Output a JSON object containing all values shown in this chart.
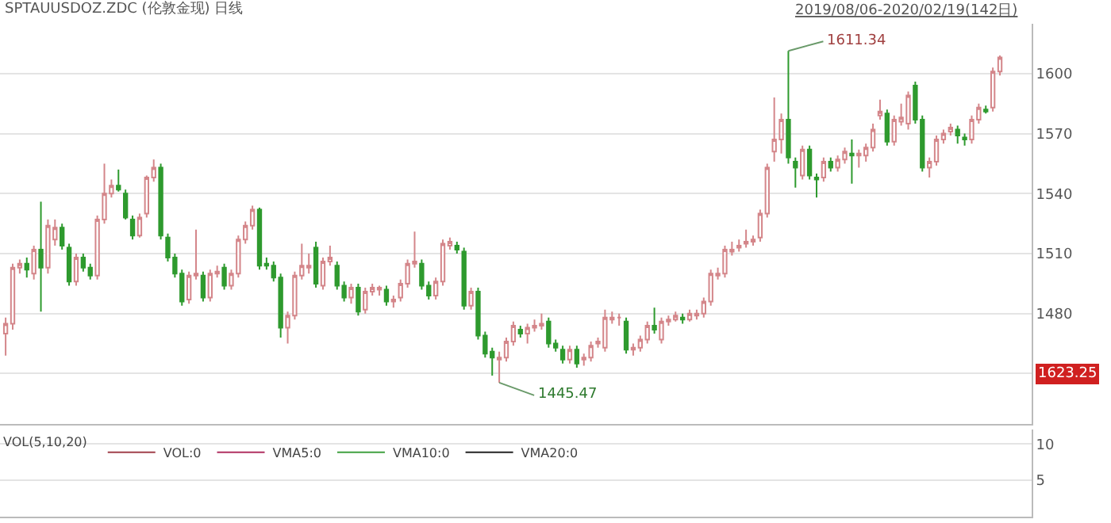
{
  "chart_data": [
    {
      "type": "candlestick",
      "title": "SPTAUUSDOZ.ZDC (伦敦金现) 日线",
      "categories": [
        null,
        null,
        null,
        null,
        null,
        null,
        null,
        null,
        null,
        null,
        null,
        null,
        null,
        null,
        null,
        null,
        null,
        null,
        null,
        null,
        null,
        null,
        null,
        null,
        null,
        null,
        null,
        null,
        null,
        null,
        null,
        null,
        null,
        null,
        null,
        null,
        null,
        null,
        null,
        null,
        null,
        null,
        null,
        null,
        null,
        null,
        null,
        null,
        null,
        null,
        null,
        null,
        null,
        null,
        null,
        null,
        null,
        null,
        null,
        null,
        null,
        null,
        null,
        null,
        null,
        null,
        null,
        null,
        null,
        null,
        null,
        null,
        null,
        null,
        null,
        null,
        null,
        null,
        null,
        null,
        null,
        null,
        null,
        null,
        null,
        null,
        null,
        null,
        null,
        null,
        null,
        null,
        null,
        null,
        null,
        null,
        null,
        null,
        null,
        null,
        null,
        null,
        null,
        null,
        null,
        null,
        null,
        null,
        null,
        null,
        null,
        null,
        null,
        null,
        null,
        null,
        null,
        null,
        null,
        null,
        null,
        null,
        null,
        null,
        null,
        null,
        null,
        null,
        null,
        null,
        null,
        null,
        null,
        null,
        null,
        null,
        null,
        null,
        null,
        null,
        null,
        null
      ],
      "ohlc": [
        [
          1470,
          1478,
          1459,
          1475
        ],
        [
          1475,
          1505,
          1472,
          1503
        ],
        [
          1503,
          1507,
          1500,
          1505
        ],
        [
          1505,
          1508,
          1498,
          1502
        ],
        [
          1500,
          1514,
          1497,
          1512
        ],
        [
          1512,
          1536,
          1481,
          1503
        ],
        [
          1503,
          1527,
          1500,
          1524
        ],
        [
          1517,
          1527,
          1514,
          1523
        ],
        [
          1523,
          1525,
          1512,
          1514
        ],
        [
          1513,
          1515,
          1494,
          1496
        ],
        [
          1496,
          1510,
          1494,
          1508
        ],
        [
          1508,
          1510,
          1501,
          1503
        ],
        [
          1503,
          1505,
          1497,
          1499
        ],
        [
          1499,
          1529,
          1497,
          1527
        ],
        [
          1527,
          1555,
          1525,
          1540
        ],
        [
          1540,
          1547,
          1538,
          1544
        ],
        [
          1544,
          1552,
          1541,
          1542
        ],
        [
          1540,
          1542,
          1527,
          1528
        ],
        [
          1527,
          1529,
          1517,
          1519
        ],
        [
          1519,
          1530,
          1518,
          1528
        ],
        [
          1530,
          1549,
          1528,
          1548
        ],
        [
          1548,
          1557,
          1546,
          1553
        ],
        [
          1553,
          1555,
          1517,
          1519
        ],
        [
          1518,
          1520,
          1506,
          1508
        ],
        [
          1508,
          1510,
          1498,
          1500
        ],
        [
          1500,
          1502,
          1484,
          1486
        ],
        [
          1487,
          1501,
          1485,
          1499
        ],
        [
          1499,
          1522,
          1497,
          1500
        ],
        [
          1499,
          1501,
          1486,
          1488
        ],
        [
          1488,
          1502,
          1486,
          1500
        ],
        [
          1500,
          1504,
          1498,
          1501
        ],
        [
          1503,
          1505,
          1492,
          1494
        ],
        [
          1494,
          1502,
          1492,
          1500
        ],
        [
          1500,
          1519,
          1498,
          1517
        ],
        [
          1517,
          1526,
          1515,
          1524
        ],
        [
          1524,
          1534,
          1522,
          1532
        ],
        [
          1532,
          1533,
          1502,
          1504
        ],
        [
          1505,
          1508,
          1502,
          1504
        ],
        [
          1504,
          1506,
          1496,
          1498
        ],
        [
          1498,
          1500,
          1468,
          1473
        ],
        [
          1473,
          1481,
          1465,
          1479
        ],
        [
          1479,
          1501,
          1477,
          1499
        ],
        [
          1499,
          1515,
          1497,
          1504
        ],
        [
          1503,
          1510,
          1500,
          1504
        ],
        [
          1513,
          1516,
          1493,
          1495
        ],
        [
          1494,
          1508,
          1492,
          1506
        ],
        [
          1506,
          1514,
          1504,
          1508
        ],
        [
          1504,
          1506,
          1492,
          1494
        ],
        [
          1494,
          1496,
          1486,
          1488
        ],
        [
          1488,
          1495,
          1485,
          1493
        ],
        [
          1493,
          1495,
          1479,
          1481
        ],
        [
          1482,
          1493,
          1480,
          1491
        ],
        [
          1491,
          1495,
          1489,
          1493
        ],
        [
          1492,
          1494,
          1489,
          1493
        ],
        [
          1492,
          1494,
          1484,
          1486
        ],
        [
          1486,
          1489,
          1483,
          1487
        ],
        [
          1488,
          1497,
          1486,
          1495
        ],
        [
          1495,
          1507,
          1493,
          1505
        ],
        [
          1505,
          1521,
          1503,
          1506
        ],
        [
          1505,
          1507,
          1492,
          1494
        ],
        [
          1494,
          1496,
          1487,
          1489
        ],
        [
          1489,
          1498,
          1487,
          1496
        ],
        [
          1496,
          1517,
          1494,
          1515
        ],
        [
          1514,
          1518,
          1512,
          1516
        ],
        [
          1514,
          1516,
          1510,
          1512
        ],
        [
          1511,
          1513,
          1482,
          1484
        ],
        [
          1484,
          1493,
          1482,
          1491
        ],
        [
          1491,
          1493,
          1467,
          1469
        ],
        [
          1469,
          1471,
          1458,
          1460
        ],
        [
          1461,
          1463,
          1449,
          1458
        ],
        [
          1457,
          1461,
          1445.47,
          1458
        ],
        [
          1458,
          1468,
          1456,
          1466
        ],
        [
          1466,
          1476,
          1464,
          1474
        ],
        [
          1472,
          1474,
          1468,
          1470
        ],
        [
          1470,
          1475,
          1465,
          1473
        ],
        [
          1473,
          1477,
          1471,
          1474
        ],
        [
          1474,
          1480,
          1472,
          1475
        ],
        [
          1476,
          1478,
          1463,
          1465
        ],
        [
          1465,
          1467,
          1461,
          1463
        ],
        [
          1462,
          1464,
          1455,
          1457
        ],
        [
          1457,
          1464,
          1455,
          1462
        ],
        [
          1462,
          1464,
          1453,
          1455
        ],
        [
          1457,
          1460,
          1454,
          1458
        ],
        [
          1458,
          1466,
          1456,
          1464
        ],
        [
          1465,
          1468,
          1463,
          1466
        ],
        [
          1463,
          1482,
          1461,
          1478
        ],
        [
          1477,
          1481,
          1475,
          1478
        ],
        [
          1478,
          1480,
          1474,
          1478
        ],
        [
          1476,
          1478,
          1460,
          1462
        ],
        [
          1462,
          1465,
          1459,
          1463
        ],
        [
          1463,
          1469,
          1461,
          1467
        ],
        [
          1467,
          1476,
          1465,
          1474
        ],
        [
          1474,
          1483,
          1470,
          1472
        ],
        [
          1467,
          1478,
          1465,
          1476
        ],
        [
          1476,
          1479,
          1474,
          1477
        ],
        [
          1477,
          1481,
          1476,
          1479
        ],
        [
          1478,
          1480,
          1475,
          1477
        ],
        [
          1477,
          1482,
          1476,
          1480
        ],
        [
          1479,
          1482,
          1477,
          1480
        ],
        [
          1480,
          1488,
          1478,
          1486
        ],
        [
          1486,
          1502,
          1484,
          1500
        ],
        [
          1499,
          1503,
          1497,
          1500
        ],
        [
          1500,
          1514,
          1498,
          1512
        ],
        [
          1511,
          1516,
          1509,
          1512
        ],
        [
          1513,
          1517,
          1511,
          1514
        ],
        [
          1515,
          1522,
          1513,
          1516
        ],
        [
          1516,
          1519,
          1514,
          1517
        ],
        [
          1518,
          1532,
          1516,
          1530
        ],
        [
          1530,
          1555,
          1528,
          1553
        ],
        [
          1561,
          1588,
          1556,
          1567
        ],
        [
          1567,
          1580,
          1560,
          1577
        ],
        [
          1577,
          1611.34,
          1555,
          1558
        ],
        [
          1556,
          1558,
          1543,
          1553
        ],
        [
          1549,
          1564,
          1547,
          1562
        ],
        [
          1562,
          1564,
          1547,
          1549
        ],
        [
          1548,
          1550,
          1538,
          1547
        ],
        [
          1548,
          1558,
          1546,
          1556
        ],
        [
          1556,
          1558,
          1551,
          1553
        ],
        [
          1553,
          1559,
          1551,
          1557
        ],
        [
          1557,
          1563,
          1555,
          1561
        ],
        [
          1560,
          1567,
          1545,
          1559
        ],
        [
          1559,
          1562,
          1553,
          1560
        ],
        [
          1559,
          1565,
          1556,
          1563
        ],
        [
          1563,
          1575,
          1561,
          1572
        ],
        [
          1579,
          1587,
          1577,
          1581
        ],
        [
          1580,
          1582,
          1564,
          1566
        ],
        [
          1566,
          1579,
          1564,
          1577
        ],
        [
          1576,
          1585,
          1574,
          1578
        ],
        [
          1575,
          1591,
          1572,
          1589
        ],
        [
          1594,
          1596,
          1575,
          1577
        ],
        [
          1577,
          1579,
          1551,
          1553
        ],
        [
          1553,
          1558,
          1548,
          1556
        ],
        [
          1556,
          1569,
          1554,
          1567
        ],
        [
          1567,
          1572,
          1565,
          1570
        ],
        [
          1571,
          1575,
          1569,
          1573
        ],
        [
          1572,
          1574,
          1565,
          1569
        ],
        [
          1568,
          1570,
          1564,
          1567
        ],
        [
          1567,
          1579,
          1565,
          1577
        ],
        [
          1577,
          1585,
          1575,
          1583
        ],
        [
          1581,
          1584,
          1580,
          1582
        ],
        [
          1583,
          1603,
          1581,
          1601
        ],
        [
          1601,
          1609,
          1599,
          1608
        ]
      ],
      "colors": [
        "#d4868a",
        "#d4868a",
        "#d4868a",
        "#2e9a2e",
        "#d4868a",
        "#2e9a2e",
        "#d4868a",
        "#d4868a",
        "#2e9a2e",
        "#2e9a2e",
        "#d4868a",
        "#2e9a2e",
        "#2e9a2e",
        "#d4868a",
        "#d4868a",
        "#d4868a",
        "#2e9a2e",
        "#2e9a2e",
        "#2e9a2e",
        "#d4868a",
        "#d4868a",
        "#d4868a",
        "#2e9a2e",
        "#2e9a2e",
        "#2e9a2e",
        "#2e9a2e",
        "#d4868a",
        "#d4868a",
        "#2e9a2e",
        "#d4868a",
        "#d4868a",
        "#2e9a2e",
        "#d4868a",
        "#d4868a",
        "#d4868a",
        "#d4868a",
        "#2e9a2e",
        "#2e9a2e",
        "#2e9a2e",
        "#2e9a2e",
        "#d4868a",
        "#d4868a",
        "#d4868a",
        "#d4868a",
        "#2e9a2e",
        "#d4868a",
        "#d4868a",
        "#2e9a2e",
        "#2e9a2e",
        "#d4868a",
        "#2e9a2e",
        "#d4868a",
        "#d4868a",
        "#d4868a",
        "#2e9a2e",
        "#d4868a",
        "#d4868a",
        "#d4868a",
        "#d4868a",
        "#2e9a2e",
        "#2e9a2e",
        "#d4868a",
        "#d4868a",
        "#d4868a",
        "#2e9a2e",
        "#2e9a2e",
        "#d4868a",
        "#2e9a2e",
        "#2e9a2e",
        "#2e9a2e",
        "#d4868a",
        "#d4868a",
        "#d4868a",
        "#2e9a2e",
        "#d4868a",
        "#d4868a",
        "#d4868a",
        "#2e9a2e",
        "#2e9a2e",
        "#2e9a2e",
        "#d4868a",
        "#2e9a2e",
        "#d4868a",
        "#d4868a",
        "#d4868a",
        "#d4868a",
        "#d4868a",
        "#d4868a",
        "#2e9a2e",
        "#d4868a",
        "#d4868a",
        "#d4868a",
        "#2e9a2e",
        "#d4868a",
        "#d4868a",
        "#d4868a",
        "#2e9a2e",
        "#d4868a",
        "#d4868a",
        "#d4868a",
        "#d4868a",
        "#d4868a",
        "#d4868a",
        "#d4868a",
        "#d4868a",
        "#d4868a",
        "#d4868a",
        "#d4868a",
        "#d4868a",
        "#d4868a",
        "#d4868a",
        "#2e9a2e",
        "#2e9a2e",
        "#d4868a",
        "#2e9a2e",
        "#2e9a2e",
        "#d4868a",
        "#2e9a2e",
        "#d4868a",
        "#d4868a",
        "#2e9a2e",
        "#d4868a",
        "#d4868a",
        "#d4868a",
        "#d4868a",
        "#2e9a2e",
        "#d4868a",
        "#d4868a",
        "#d4868a",
        "#2e9a2e",
        "#2e9a2e",
        "#d4868a",
        "#d4868a",
        "#d4868a",
        "#d4868a",
        "#2e9a2e",
        "#2e9a2e",
        "#d4868a",
        "#d4868a",
        "#2e9a2e",
        "#d4868a",
        "#d4868a"
      ],
      "ylim": [
        1425,
        1625
      ],
      "yticks": [
        {
          "value": 1450,
          "label": null
        },
        1480,
        1510,
        1540,
        1570,
        1600
      ],
      "grid": "y",
      "annotations": [
        "1611.34",
        "1445.47",
        "2019/08/06-2020/02/19(142日)",
        "1623.25"
      ]
    },
    {
      "type": "line",
      "legend_title": "VOL(5,10,20)",
      "categories": [
        null,
        null
      ],
      "series": [
        {
          "name": "VOL:0",
          "color": "#a0404a",
          "values": [
            null,
            null
          ]
        },
        {
          "name": "VMA5:0",
          "color": "#b03060",
          "values": [
            null,
            null
          ]
        },
        {
          "name": "VMA10:0",
          "color": "#40a040",
          "values": [
            null,
            null
          ]
        },
        {
          "name": "VMA20:0",
          "color": "#222222",
          "values": [
            null,
            null
          ]
        }
      ],
      "ylim": [
        0,
        12
      ],
      "yticks": [
        5,
        10
      ],
      "grid": "y",
      "legend": "top left"
    }
  ]
}
